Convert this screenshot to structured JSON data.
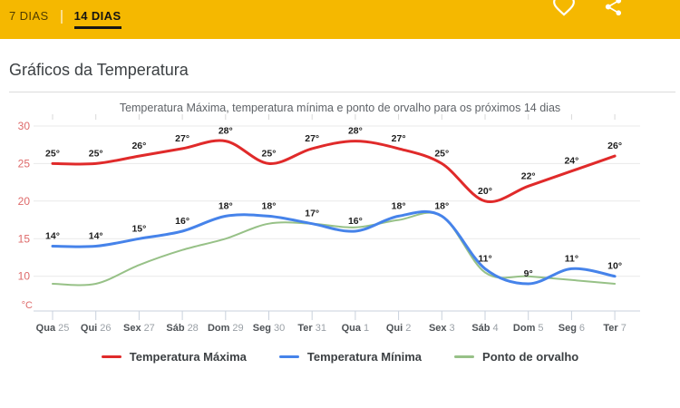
{
  "topbar": {
    "tab_7_label": "7 DIAS",
    "tab_14_label": "14 DIAS",
    "active_tab": "14 DIAS",
    "bg_color": "#F5B800"
  },
  "section": {
    "title": "Gráficos da Temperatura"
  },
  "chart_data": {
    "type": "line",
    "subtitle": "Temperatura Máxima, temperatura mínima e ponto de orvalho para os próximos 14 dias",
    "unit": "°C",
    "categories": [
      {
        "day": "Qua",
        "num": "25"
      },
      {
        "day": "Qui",
        "num": "26"
      },
      {
        "day": "Sex",
        "num": "27"
      },
      {
        "day": "Sáb",
        "num": "28"
      },
      {
        "day": "Dom",
        "num": "29"
      },
      {
        "day": "Seg",
        "num": "30"
      },
      {
        "day": "Ter",
        "num": "31"
      },
      {
        "day": "Qua",
        "num": "1"
      },
      {
        "day": "Qui",
        "num": "2"
      },
      {
        "day": "Sex",
        "num": "3"
      },
      {
        "day": "Sáb",
        "num": "4"
      },
      {
        "day": "Dom",
        "num": "5"
      },
      {
        "day": "Seg",
        "num": "6"
      },
      {
        "day": "Ter",
        "num": "7"
      }
    ],
    "series": [
      {
        "name": "Temperatura Máxima",
        "color": "#e02a2a",
        "stroke_width": 3,
        "show_labels": true,
        "values": [
          25,
          25,
          26,
          27,
          28,
          25,
          27,
          28,
          27,
          25,
          20,
          22,
          24,
          26
        ]
      },
      {
        "name": "Temperatura Mínima",
        "color": "#4683ea",
        "stroke_width": 3,
        "show_labels": true,
        "values": [
          14,
          14,
          15,
          16,
          18,
          18,
          17,
          16,
          18,
          18,
          11,
          9,
          11,
          10
        ]
      },
      {
        "name": "Ponto de orvalho",
        "color": "#97c187",
        "stroke_width": 2,
        "show_labels": false,
        "values": [
          9,
          9,
          11.5,
          13.5,
          15,
          17,
          17,
          16.5,
          17.5,
          18,
          10.5,
          10,
          9.5,
          9
        ]
      }
    ],
    "yticks": [
      30,
      25,
      20,
      15,
      10
    ],
    "ylim": [
      5,
      30
    ],
    "grid": true,
    "legend_position": "bottom",
    "axis_colors": {
      "y_labels": "#de6a6a",
      "grid": "#e9e9e9",
      "axis": "#c9d1dc",
      "x_label_day": "#4e5256",
      "x_label_num": "#9aa0a6",
      "point_labels": "#1d1d1d"
    }
  }
}
